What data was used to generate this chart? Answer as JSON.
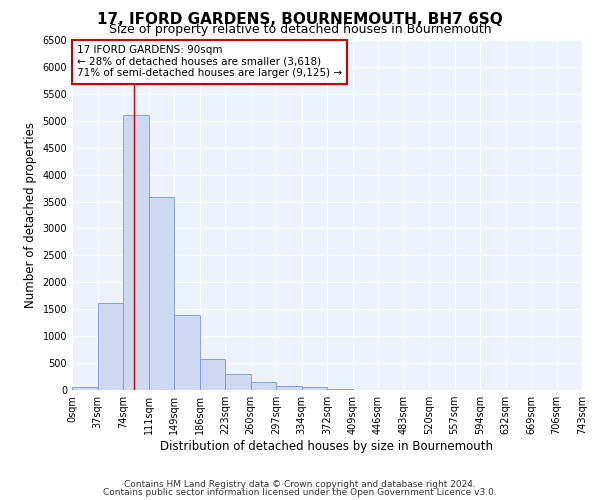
{
  "title": "17, IFORD GARDENS, BOURNEMOUTH, BH7 6SQ",
  "subtitle": "Size of property relative to detached houses in Bournemouth",
  "xlabel": "Distribution of detached houses by size in Bournemouth",
  "ylabel": "Number of detached properties",
  "footnote1": "Contains HM Land Registry data © Crown copyright and database right 2024.",
  "footnote2": "Contains public sector information licensed under the Open Government Licence v3.0.",
  "bin_labels": [
    "0sqm",
    "37sqm",
    "74sqm",
    "111sqm",
    "149sqm",
    "186sqm",
    "223sqm",
    "260sqm",
    "297sqm",
    "334sqm",
    "372sqm",
    "409sqm",
    "446sqm",
    "483sqm",
    "520sqm",
    "557sqm",
    "594sqm",
    "632sqm",
    "669sqm",
    "706sqm",
    "743sqm"
  ],
  "bar_values": [
    50,
    1620,
    5100,
    3580,
    1400,
    580,
    300,
    150,
    80,
    50,
    10,
    3,
    2,
    0,
    0,
    0,
    0,
    0,
    0,
    0
  ],
  "bar_color": "#ccd9f0",
  "bar_edge_color": "#7799cc",
  "red_line_x": 2.43,
  "annotation_line1": "17 IFORD GARDENS: 90sqm",
  "annotation_line2": "← 28% of detached houses are smaller (3,618)",
  "annotation_line3": "71% of semi-detached houses are larger (9,125) →",
  "ylim_max": 6500,
  "yticks": [
    0,
    500,
    1000,
    1500,
    2000,
    2500,
    3000,
    3500,
    4000,
    4500,
    5000,
    5500,
    6000,
    6500
  ],
  "background_color": "#eef2fc",
  "grid_color": "#ffffff",
  "annotation_box_facecolor": "#ffffff",
  "annotation_box_edgecolor": "#cc0000",
  "title_fontsize": 11,
  "subtitle_fontsize": 9,
  "axis_label_fontsize": 8.5,
  "tick_fontsize": 7,
  "annotation_fontsize": 7.5,
  "footnote_fontsize": 6.5
}
